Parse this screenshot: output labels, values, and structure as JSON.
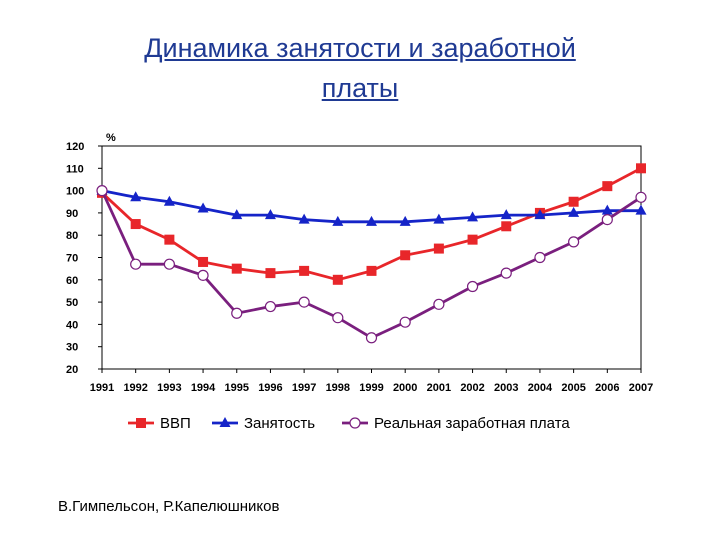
{
  "page": {
    "title_line1": "Динамика занятости и заработной",
    "title_line2": "платы",
    "author": "В.Гимпельсон, Р.Капелюшников"
  },
  "chart_data": {
    "type": "line",
    "unit_label": "%",
    "ylim": [
      20,
      120
    ],
    "yticks": [
      20,
      30,
      40,
      50,
      60,
      70,
      80,
      90,
      100,
      110,
      120
    ],
    "categories": [
      "1991",
      "1992",
      "1993",
      "1994",
      "1995",
      "1996",
      "1997",
      "1998",
      "1999",
      "2000",
      "2001",
      "2002",
      "2003",
      "2004",
      "2005",
      "2006",
      "2007"
    ],
    "grid": false,
    "legend_position": "bottom",
    "series": [
      {
        "name": "ВВП",
        "color": "#e8262a",
        "marker": "square",
        "values": [
          99,
          85,
          78,
          68,
          65,
          63,
          64,
          60,
          64,
          71,
          74,
          78,
          84,
          90,
          95,
          102,
          110
        ]
      },
      {
        "name": "Занятость",
        "color": "#1524c8",
        "marker": "triangle",
        "values": [
          100,
          97,
          95,
          92,
          89,
          89,
          87,
          86,
          86,
          86,
          87,
          88,
          89,
          89,
          90,
          91,
          91
        ]
      },
      {
        "name": "Реальная заработная плата",
        "color": "#7a1f7e",
        "marker": "circle",
        "values": [
          100,
          67,
          67,
          62,
          45,
          48,
          50,
          43,
          34,
          41,
          49,
          57,
          63,
          70,
          77,
          87,
          97
        ]
      }
    ]
  }
}
